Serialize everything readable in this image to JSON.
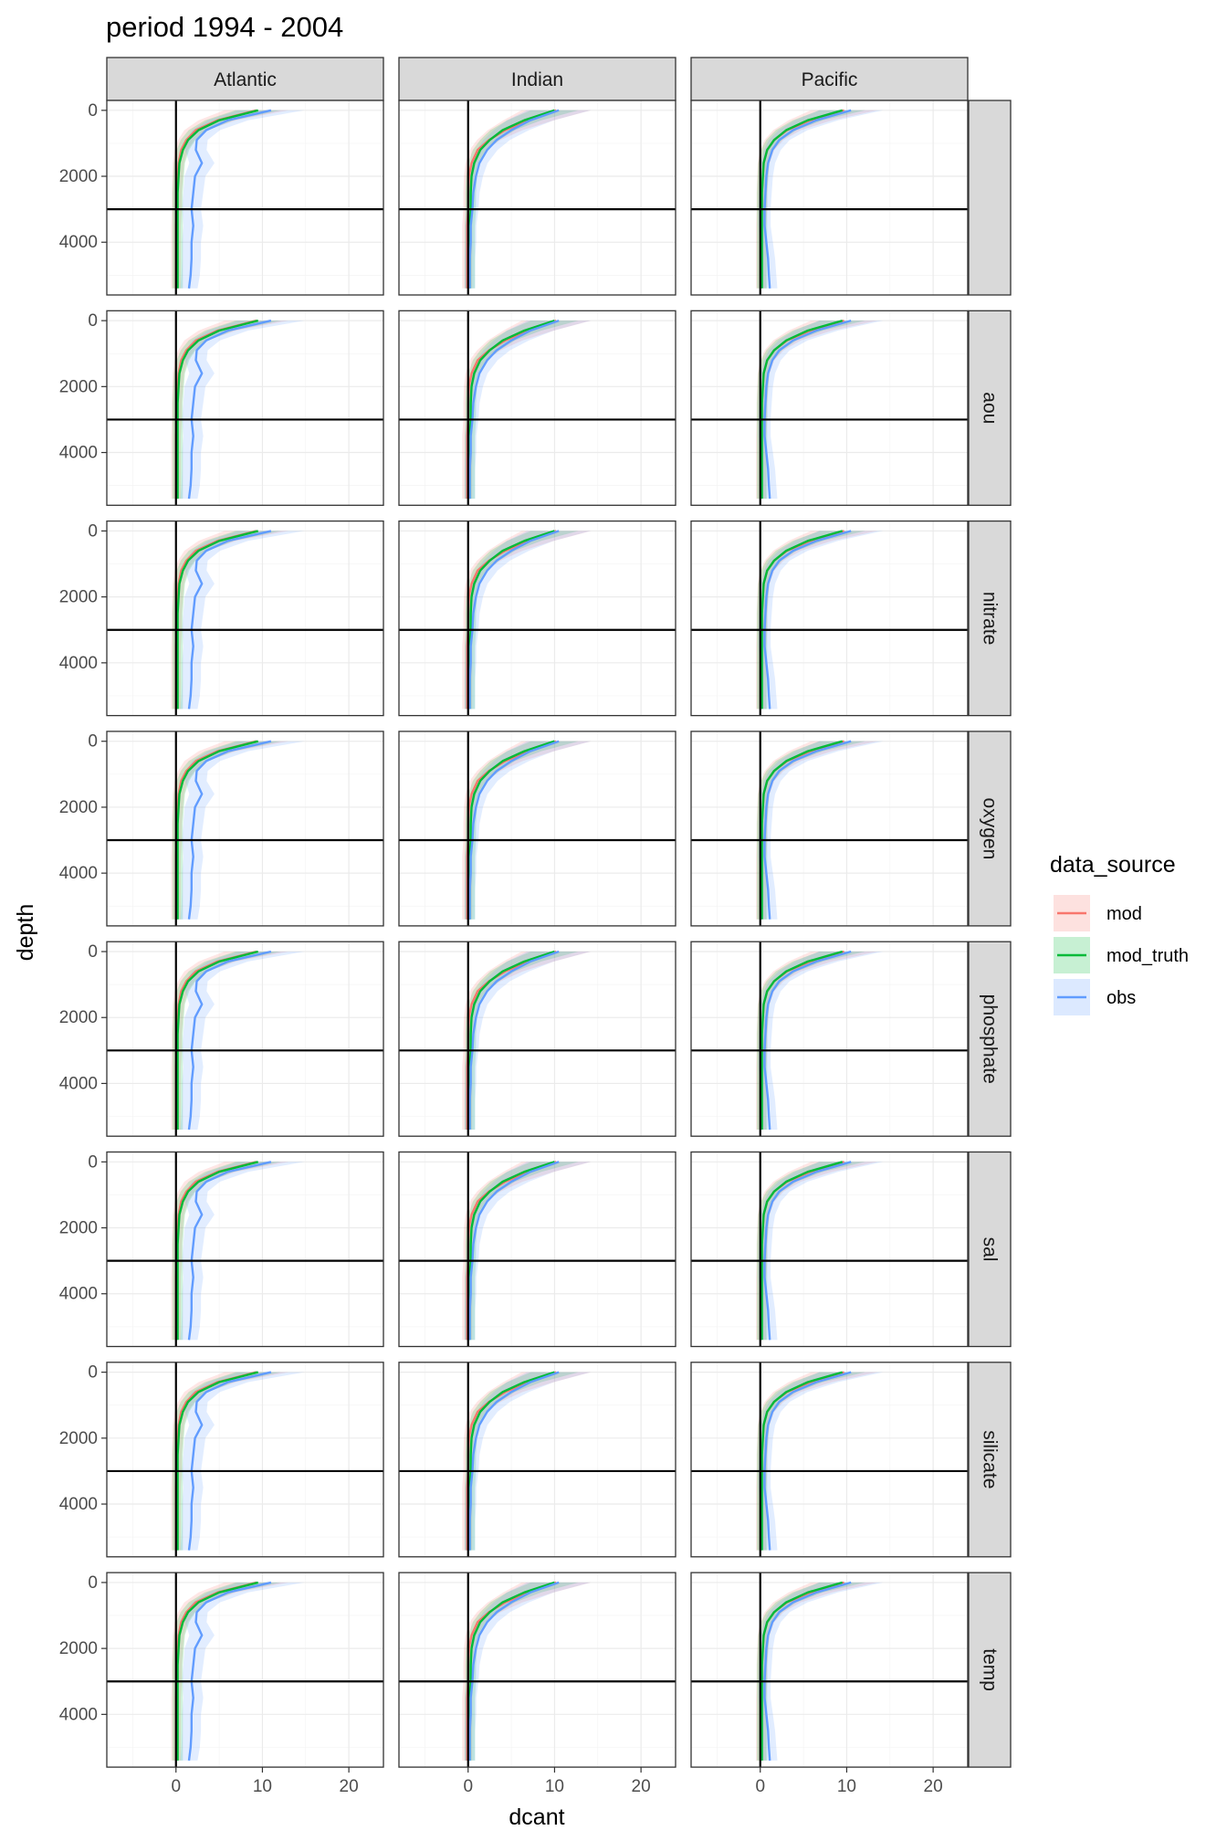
{
  "chart_data": {
    "type": "line",
    "title": "period 1994 - 2004",
    "xlabel": "dcant",
    "ylabel": "depth",
    "xlim": [
      -8,
      24
    ],
    "ylim": [
      5600,
      -300
    ],
    "y_reversed": true,
    "x_ticks": [
      0,
      10,
      20
    ],
    "y_ticks": [
      0,
      2000,
      4000
    ],
    "grid": true,
    "vline_x": 0,
    "hline_depth": 3000,
    "columns": [
      "Atlantic",
      "Indian",
      "Pacific"
    ],
    "rows": [
      "",
      "aou",
      "nitrate",
      "oxygen",
      "phosphate",
      "sal",
      "silicate",
      "temp"
    ],
    "depth": [
      0,
      300,
      600,
      900,
      1200,
      1600,
      2000,
      2500,
      3000,
      3500,
      4000,
      4500,
      5000,
      5400
    ],
    "legend": {
      "title": "data_source",
      "position": "right",
      "entries": [
        {
          "name": "mod",
          "color": "#F8766D"
        },
        {
          "name": "mod_truth",
          "color": "#00BA38"
        },
        {
          "name": "obs",
          "color": "#619CFF"
        }
      ]
    },
    "series_profiles": {
      "Atlantic": {
        "mod_truth": [
          9.5,
          5.0,
          2.6,
          1.4,
          0.8,
          0.4,
          0.3,
          0.2,
          0.2,
          0.2,
          0.2,
          0.2,
          0.2,
          0.2
        ],
        "mod": [
          9.3,
          4.8,
          2.3,
          1.2,
          0.6,
          0.3,
          0.2,
          0.1,
          0.1,
          0.0,
          0.0,
          0.0,
          0.0,
          0.0
        ],
        "obs": [
          11.0,
          6.0,
          3.5,
          2.4,
          2.3,
          3.0,
          2.2,
          2.0,
          1.8,
          2.0,
          1.8,
          1.8,
          1.7,
          1.5
        ]
      },
      "Indian": {
        "mod_truth": [
          10.0,
          6.5,
          4.0,
          2.5,
          1.4,
          0.7,
          0.4,
          0.3,
          0.3,
          0.2,
          0.2,
          0.2,
          0.2,
          0.2
        ],
        "mod": [
          10.2,
          7.0,
          4.3,
          2.4,
          1.1,
          0.4,
          0.1,
          0.0,
          0.0,
          -0.1,
          -0.1,
          -0.1,
          -0.1,
          -0.1
        ],
        "obs": [
          10.5,
          7.2,
          5.0,
          3.3,
          2.2,
          1.3,
          0.9,
          0.6,
          0.5,
          0.3,
          0.3,
          0.2,
          0.2,
          0.2
        ]
      },
      "Pacific": {
        "mod_truth": [
          9.5,
          5.5,
          3.0,
          1.6,
          0.8,
          0.4,
          0.3,
          0.2,
          0.2,
          0.2,
          0.2,
          0.2,
          0.2,
          0.2
        ],
        "mod": [
          9.7,
          5.8,
          3.1,
          1.6,
          0.8,
          0.4,
          0.3,
          0.2,
          0.2,
          0.1,
          0.1,
          0.1,
          0.1,
          0.1
        ],
        "obs": [
          10.5,
          6.5,
          3.8,
          2.2,
          1.4,
          0.9,
          0.7,
          0.6,
          0.5,
          0.5,
          0.7,
          0.9,
          1.0,
          1.1
        ]
      }
    }
  }
}
